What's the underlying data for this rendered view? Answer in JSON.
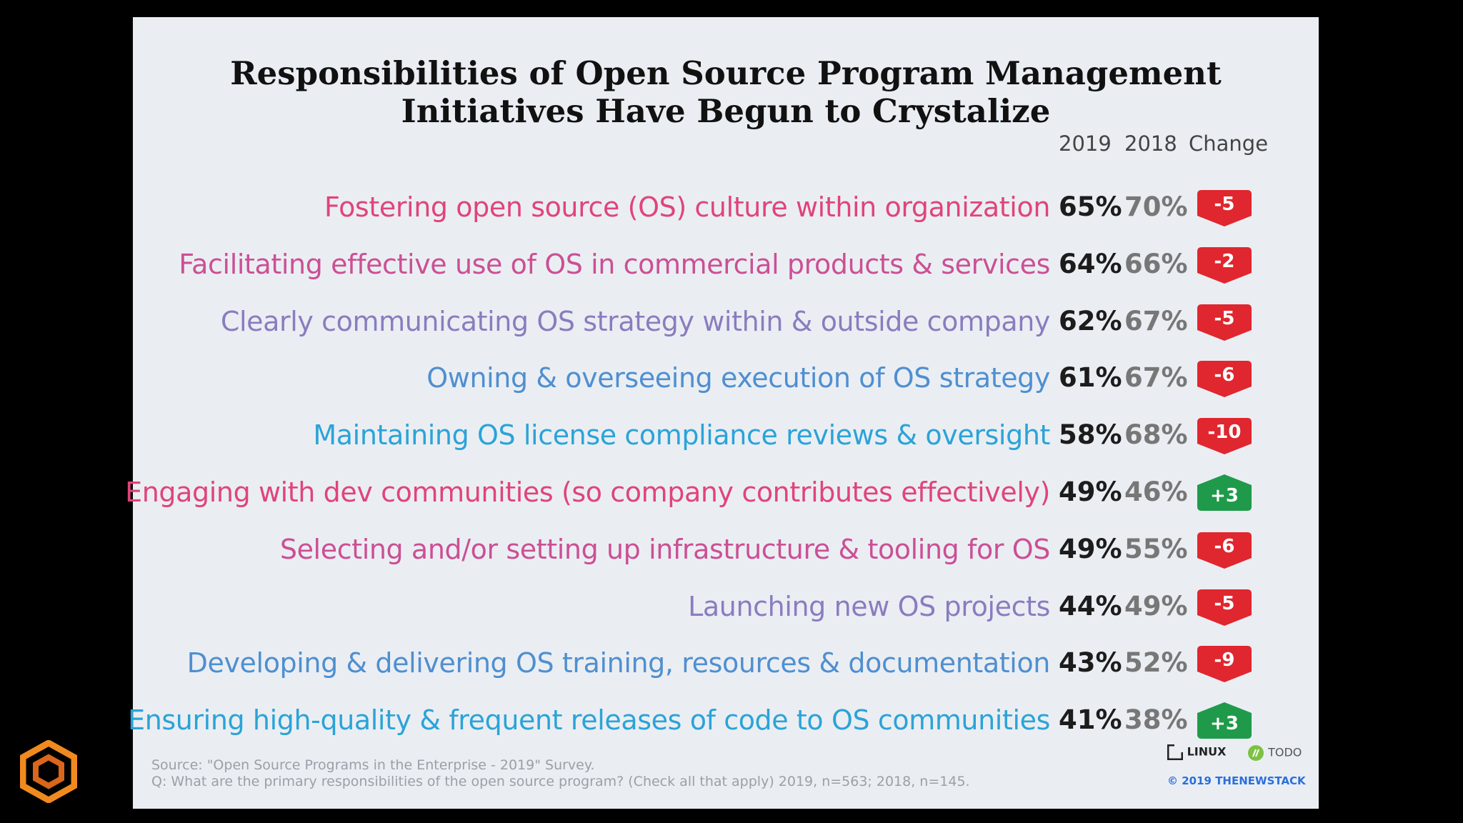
{
  "chart_data": {
    "type": "table",
    "title_lines": [
      "Responsibilities of Open Source Program Management",
      "Initiatives Have Begun to Crystalize"
    ],
    "columns": [
      "2019",
      "2018",
      "Change"
    ],
    "rows": [
      {
        "label": "Fostering open source (OS) culture within organization",
        "v2019": "65%",
        "v2018": "70%",
        "change": "-5",
        "color": "#e0447a"
      },
      {
        "label": "Facilitating effective use of OS in commercial products & services",
        "v2019": "64%",
        "v2018": "66%",
        "change": "-2",
        "color": "#cc4f94"
      },
      {
        "label": "Clearly communicating OS strategy within & outside company",
        "v2019": "62%",
        "v2018": "67%",
        "change": "-5",
        "color": "#8a7cbf"
      },
      {
        "label": "Owning & overseeing execution of OS strategy",
        "v2019": "61%",
        "v2018": "67%",
        "change": "-6",
        "color": "#4f8fd0"
      },
      {
        "label": "Maintaining OS license compliance reviews & oversight",
        "v2019": "58%",
        "v2018": "68%",
        "change": "-10",
        "color": "#2ba3d8"
      },
      {
        "label": "Engaging with dev communities (so company contributes effectively)",
        "v2019": "49%",
        "v2018": "46%",
        "change": "+3",
        "color": "#e0447a"
      },
      {
        "label": "Selecting and/or setting up infrastructure & tooling for OS",
        "v2019": "49%",
        "v2018": "55%",
        "change": "-6",
        "color": "#cc4f94"
      },
      {
        "label": "Launching new OS projects",
        "v2019": "44%",
        "v2018": "49%",
        "change": "-5",
        "color": "#8a7cbf"
      },
      {
        "label": "Developing & delivering OS training, resources & documentation",
        "v2019": "43%",
        "v2018": "52%",
        "change": "-9",
        "color": "#4f8fd0"
      },
      {
        "label": "Ensuring high-quality & frequent releases of code to OS communities",
        "v2019": "41%",
        "v2018": "38%",
        "change": "+3",
        "color": "#2ba3d8"
      }
    ],
    "badge_colors": {
      "negative": "#e0262e",
      "positive": "#1f9a4a"
    }
  },
  "footer": {
    "source_line": "Source: \"Open Source Programs in the Enterprise - 2019\" Survey.",
    "question_line": "Q: What are the primary responsibilities of the open source program? (Check all that apply) 2019, n=563; 2018, n=145.",
    "logo_linux": "LINUX",
    "logo_todo": "TODO",
    "copyright": "© 2019 THENEWSTACK"
  }
}
